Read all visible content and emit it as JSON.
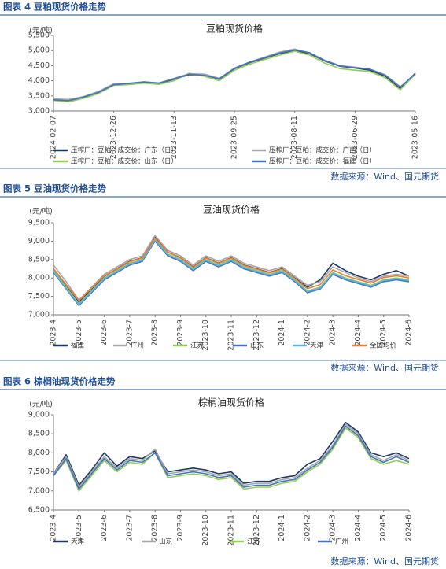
{
  "chart_data": [
    {
      "type": "line",
      "caption": "图表 4 豆粕现货价格走势",
      "title": "豆粕现货价格",
      "y_label": "(元/吨)",
      "source": "数据来源：Wind、国元期货",
      "categories": [
        "2024-02-07",
        null,
        null,
        null,
        "2023-12-26",
        null,
        null,
        null,
        "2023-11-13",
        null,
        null,
        null,
        "2023-09-25",
        null,
        null,
        null,
        "2023-08-11",
        null,
        null,
        null,
        "2023-06-29",
        null,
        null,
        null,
        "2023-05-16"
      ],
      "ylim": [
        3000,
        5500
      ],
      "yticks": [
        {
          "value": 3000,
          "label": "3,000"
        },
        {
          "value": 3500,
          "label": "3,500"
        },
        {
          "value": 4000,
          "label": "4,000"
        },
        {
          "value": 4500,
          "label": "4,500"
        },
        {
          "value": 5000,
          "label": "5,000"
        },
        {
          "value": 5500,
          "label": "5,500"
        }
      ],
      "series": [
        {
          "name": "压榨厂：豆粕：成交价：广东（日）",
          "color": "#1f3864",
          "values": [
            3380,
            3350,
            3450,
            3600,
            3880,
            3900,
            3950,
            3900,
            4050,
            4200,
            4200,
            4050,
            4400,
            4600,
            4750,
            4900,
            5000,
            4900,
            4650,
            4480,
            4420,
            4350,
            4150,
            3750,
            4250
          ]
        },
        {
          "name": "压榨厂：豆粕：成交价：广西（日）",
          "color": "#a6a6a6",
          "values": [
            3400,
            3380,
            3480,
            3650,
            3900,
            3920,
            3960,
            3930,
            4080,
            4230,
            4220,
            4080,
            4420,
            4620,
            4780,
            4950,
            5050,
            4920,
            4680,
            4500,
            4450,
            4380,
            4200,
            3800,
            4200
          ]
        },
        {
          "name": "压榨厂：豆粕：成交价：山东（日）",
          "color": "#92d050",
          "values": [
            3350,
            3300,
            3420,
            3580,
            3850,
            3870,
            3920,
            3880,
            4000,
            4250,
            4150,
            4000,
            4350,
            4550,
            4700,
            4850,
            4980,
            4850,
            4580,
            4400,
            4350,
            4300,
            4100,
            3700,
            4220
          ]
        },
        {
          "name": "压榨厂：豆粕：成交价：福建（日）",
          "color": "#4472c4",
          "values": [
            3370,
            3340,
            3460,
            3620,
            3870,
            3910,
            3960,
            3920,
            4060,
            4220,
            4180,
            4060,
            4410,
            4610,
            4760,
            4920,
            5020,
            4930,
            4660,
            4490,
            4430,
            4380,
            4180,
            3780,
            4240
          ]
        }
      ]
    },
    {
      "type": "line",
      "caption": "图表 5 豆油现货价格走势",
      "title": "豆油现货价格",
      "y_label": "(元/吨)",
      "source": "数据来源：Wind、国元期货",
      "categories": [
        "2023-4",
        null,
        "2023-5",
        null,
        "2023-6",
        null,
        "2023-7",
        null,
        "2023-8",
        null,
        "2023-9",
        null,
        "2023-10",
        null,
        "2023-11",
        null,
        "2023-12",
        null,
        "2024-1",
        null,
        "2024-2",
        null,
        "2024-3",
        null,
        "2024-4",
        null,
        "2024-5",
        null,
        "2024-6"
      ],
      "ylim": [
        7000,
        9500
      ],
      "yticks": [
        {
          "value": 7000,
          "label": "7,000"
        },
        {
          "value": 7500,
          "label": "7,500"
        },
        {
          "value": 8000,
          "label": "8,000"
        },
        {
          "value": 8500,
          "label": "8,500"
        },
        {
          "value": 9000,
          "label": "9,000"
        },
        {
          "value": 9500,
          "label": "9,500"
        }
      ],
      "series": [
        {
          "name": "福建",
          "color": "#1f3864",
          "values": [
            8250,
            7800,
            7350,
            7700,
            8050,
            8250,
            8450,
            8550,
            9100,
            8700,
            8550,
            8300,
            8550,
            8400,
            8550,
            8350,
            8250,
            8150,
            8250,
            8000,
            7750,
            7950,
            8400,
            8200,
            8050,
            7950,
            8100,
            8200,
            8050
          ]
        },
        {
          "name": "广州",
          "color": "#a6a6a6",
          "values": [
            8350,
            7900,
            7400,
            7750,
            8100,
            8300,
            8500,
            8600,
            9150,
            8750,
            8600,
            8350,
            8600,
            8450,
            8600,
            8400,
            8300,
            8200,
            8300,
            8050,
            7800,
            7900,
            8300,
            8150,
            8000,
            7900,
            8050,
            8100,
            8050
          ]
        },
        {
          "name": "江苏",
          "color": "#92d050",
          "values": [
            8200,
            7750,
            7300,
            7650,
            8000,
            8200,
            8400,
            8500,
            9050,
            8650,
            8500,
            8250,
            8500,
            8350,
            8500,
            8300,
            8200,
            8100,
            8200,
            7950,
            7650,
            7750,
            8150,
            8000,
            7900,
            7800,
            7950,
            8000,
            7950
          ]
        },
        {
          "name": "山东",
          "color": "#4472c4",
          "values": [
            8150,
            7700,
            7250,
            7600,
            7950,
            8150,
            8350,
            8450,
            9000,
            8600,
            8450,
            8200,
            8450,
            8300,
            8450,
            8250,
            8150,
            8050,
            8150,
            7900,
            7600,
            7700,
            8100,
            7950,
            7850,
            7750,
            7900,
            7950,
            7900
          ]
        },
        {
          "name": "天津",
          "color": "#5ab4e0",
          "values": [
            8180,
            7720,
            7280,
            7630,
            7980,
            8180,
            8380,
            8480,
            9030,
            8630,
            8480,
            8230,
            8480,
            8330,
            8480,
            8280,
            8180,
            8080,
            8180,
            7930,
            7630,
            7730,
            8130,
            7980,
            7880,
            7780,
            7930,
            7980,
            7930
          ]
        },
        {
          "name": "全国均价",
          "color": "#ed7d31",
          "values": [
            8250,
            7820,
            7380,
            7720,
            8060,
            8240,
            8440,
            8540,
            9080,
            8700,
            8540,
            8290,
            8540,
            8390,
            8540,
            8340,
            8240,
            8140,
            8240,
            7990,
            7710,
            7820,
            8220,
            8060,
            7960,
            7860,
            8010,
            8060,
            8000
          ]
        }
      ]
    },
    {
      "type": "line",
      "caption": "图表 6 棕榈油现货价格走势",
      "title": "棕榈油现货价格",
      "y_label": "(元/吨)",
      "source": "数据来源：Wind、国元期货",
      "categories": [
        "2023-4",
        null,
        "2023-5",
        null,
        "2023-6",
        null,
        "2023-7",
        null,
        "2023-8",
        null,
        "2023-9",
        null,
        "2023-10",
        null,
        "2023-11",
        null,
        "2023-12",
        null,
        "2024-1",
        null,
        "2024-2",
        null,
        "2024-3",
        null,
        "2024-4",
        null,
        "2024-5",
        null,
        "2024-6"
      ],
      "ylim": [
        6500,
        9000
      ],
      "yticks": [
        {
          "value": 6500,
          "label": "6,500"
        },
        {
          "value": 7000,
          "label": "7,000"
        },
        {
          "value": 7500,
          "label": "7,500"
        },
        {
          "value": 8000,
          "label": "8,000"
        },
        {
          "value": 8500,
          "label": "8,500"
        },
        {
          "value": 9000,
          "label": "9,000"
        }
      ],
      "series": [
        {
          "name": "天津",
          "color": "#1f3864",
          "values": [
            7450,
            7950,
            7150,
            7550,
            8000,
            7650,
            7900,
            7850,
            8050,
            7500,
            7550,
            7600,
            7550,
            7450,
            7500,
            7200,
            7250,
            7250,
            7350,
            7400,
            7700,
            7850,
            8300,
            8800,
            8550,
            8000,
            7900,
            8000,
            7850
          ]
        },
        {
          "name": "山东",
          "color": "#a6a6a6",
          "values": [
            7450,
            7900,
            7100,
            7500,
            7900,
            7600,
            7850,
            7800,
            8100,
            7450,
            7500,
            7550,
            7500,
            7400,
            7450,
            7150,
            7200,
            7200,
            7300,
            7350,
            7600,
            7800,
            8200,
            8750,
            8500,
            7950,
            7800,
            7950,
            7800
          ]
        },
        {
          "name": "江苏",
          "color": "#92d050",
          "values": [
            7400,
            7800,
            7000,
            7400,
            7800,
            7500,
            7750,
            7700,
            8000,
            7350,
            7400,
            7450,
            7400,
            7300,
            7350,
            7050,
            7100,
            7100,
            7200,
            7250,
            7500,
            7700,
            8100,
            8650,
            8400,
            7850,
            7700,
            7800,
            7700
          ]
        },
        {
          "name": "广州",
          "color": "#4472c4",
          "values": [
            7400,
            7850,
            7050,
            7450,
            7850,
            7550,
            7800,
            7750,
            8000,
            7400,
            7450,
            7500,
            7450,
            7350,
            7400,
            7100,
            7150,
            7150,
            7250,
            7300,
            7550,
            7750,
            8150,
            8700,
            8450,
            7900,
            7750,
            7900,
            7750
          ]
        }
      ]
    }
  ]
}
